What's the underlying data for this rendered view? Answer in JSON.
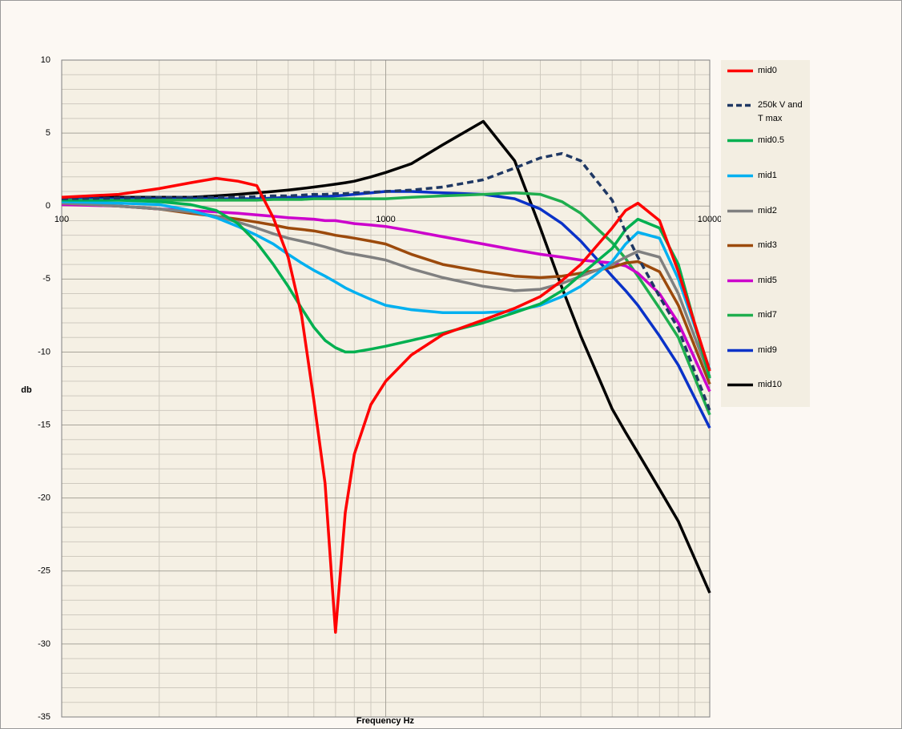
{
  "chart_data": {
    "type": "line",
    "xlabel": "Frequency Hz",
    "ylabel": "db",
    "x": [
      100,
      150,
      200,
      250,
      300,
      350,
      400,
      450,
      500,
      550,
      600,
      650,
      700,
      750,
      800,
      900,
      1000,
      1200,
      1500,
      2000,
      2500,
      3000,
      3500,
      4000,
      5000,
      5500,
      6000,
      7000,
      8000,
      10000
    ],
    "xlim": [
      100,
      10000
    ],
    "xticks": [
      100,
      1000,
      10000
    ],
    "log_x": true,
    "ylim": [
      -35,
      10
    ],
    "yticks": [
      -35,
      -30,
      -25,
      -20,
      -15,
      -10,
      -5,
      0,
      5,
      10
    ],
    "grid": true,
    "legend": "right",
    "series": [
      {
        "name": "mid0",
        "color": "#ff0000",
        "values": [
          0.6,
          0.8,
          1.2,
          1.6,
          1.9,
          1.7,
          1.4,
          -0.8,
          -3.5,
          -7.5,
          -13.3,
          -19,
          -29.2,
          -21,
          -17,
          -13.6,
          -12,
          -10.2,
          -8.8,
          -7.8,
          -7,
          -6.2,
          -5.1,
          -4,
          -1.5,
          -0.3,
          0.2,
          -1,
          -4.5,
          -11.3
        ]
      },
      {
        "name": "250k V and T max",
        "color": "#1f3864",
        "dash": true,
        "values": [
          0.5,
          0.55,
          0.6,
          0.6,
          0.6,
          0.6,
          0.65,
          0.7,
          0.7,
          0.75,
          0.8,
          0.8,
          0.85,
          0.85,
          0.9,
          0.95,
          1,
          1.1,
          1.3,
          1.8,
          2.6,
          3.3,
          3.6,
          3.1,
          0.4,
          -1.8,
          -3.5,
          -6.2,
          -8.4,
          -14
        ]
      },
      {
        "name": "mid0.5",
        "color": "#00b050",
        "values": [
          0.4,
          0.4,
          0.3,
          0.1,
          -0.3,
          -1.2,
          -2.5,
          -4,
          -5.5,
          -7,
          -8.3,
          -9.2,
          -9.7,
          -10,
          -10,
          -9.8,
          -9.6,
          -9.2,
          -8.7,
          -8,
          -7.3,
          -6.7,
          -5.8,
          -4.7,
          -2.9,
          -1.6,
          -0.9,
          -1.5,
          -4,
          -11.8
        ]
      },
      {
        "name": "mid1",
        "color": "#00b0f0",
        "values": [
          0.3,
          0.2,
          0.1,
          -0.3,
          -0.8,
          -1.4,
          -2,
          -2.6,
          -3.3,
          -3.9,
          -4.4,
          -4.8,
          -5.2,
          -5.6,
          -5.9,
          -6.4,
          -6.8,
          -7.1,
          -7.3,
          -7.3,
          -7.2,
          -6.8,
          -6.2,
          -5.5,
          -3.8,
          -2.6,
          -1.8,
          -2.2,
          -5,
          -11.2
        ]
      },
      {
        "name": "mid2",
        "color": "#808080",
        "values": [
          0.2,
          0,
          -0.2,
          -0.4,
          -0.7,
          -1.1,
          -1.5,
          -1.9,
          -2.2,
          -2.4,
          -2.6,
          -2.8,
          -3,
          -3.2,
          -3.3,
          -3.5,
          -3.7,
          -4.3,
          -4.9,
          -5.5,
          -5.8,
          -5.7,
          -5.3,
          -4.8,
          -4,
          -3.5,
          -3.1,
          -3.5,
          -6,
          -11.7
        ]
      },
      {
        "name": "mid3",
        "color": "#9c4a0c",
        "values": [
          0.2,
          0,
          -0.2,
          -0.5,
          -0.7,
          -0.9,
          -1.1,
          -1.3,
          -1.5,
          -1.6,
          -1.7,
          -1.85,
          -2,
          -2.1,
          -2.2,
          -2.4,
          -2.6,
          -3.3,
          -4,
          -4.5,
          -4.8,
          -4.9,
          -4.8,
          -4.6,
          -4.2,
          -3.9,
          -3.8,
          -4.5,
          -6.8,
          -12.2
        ]
      },
      {
        "name": "mid5",
        "color": "#cc00cc",
        "values": [
          0.1,
          0,
          -0.2,
          -0.3,
          -0.4,
          -0.5,
          -0.6,
          -0.7,
          -0.8,
          -0.85,
          -0.9,
          -1,
          -1,
          -1.1,
          -1.2,
          -1.3,
          -1.4,
          -1.7,
          -2.1,
          -2.6,
          -3,
          -3.3,
          -3.5,
          -3.7,
          -3.9,
          -4.1,
          -4.6,
          -6,
          -8,
          -12.7
        ]
      },
      {
        "name": "mid7",
        "color": "#1fae4e",
        "values": [
          0.4,
          0.4,
          0.4,
          0.4,
          0.4,
          0.4,
          0.4,
          0.45,
          0.45,
          0.45,
          0.5,
          0.5,
          0.5,
          0.5,
          0.5,
          0.5,
          0.5,
          0.6,
          0.7,
          0.8,
          0.9,
          0.8,
          0.3,
          -0.5,
          -2.5,
          -3.6,
          -4.8,
          -7,
          -9,
          -14.3
        ]
      },
      {
        "name": "mid9",
        "color": "#0a32c8",
        "values": [
          0.5,
          0.5,
          0.5,
          0.5,
          0.5,
          0.5,
          0.5,
          0.55,
          0.6,
          0.6,
          0.65,
          0.65,
          0.7,
          0.75,
          0.8,
          0.9,
          1,
          1,
          0.9,
          0.8,
          0.5,
          -0.2,
          -1.2,
          -2.4,
          -4.8,
          -5.8,
          -6.8,
          -8.9,
          -10.9,
          -15.2
        ]
      },
      {
        "name": "mid10",
        "color": "#000000",
        "values": [
          0.6,
          0.6,
          0.6,
          0.6,
          0.7,
          0.8,
          0.9,
          1,
          1.1,
          1.2,
          1.3,
          1.4,
          1.5,
          1.6,
          1.7,
          2,
          2.3,
          2.9,
          4.2,
          5.8,
          3.1,
          -1.5,
          -5.6,
          -8.9,
          -13.9,
          -15.5,
          -16.9,
          -19.4,
          -21.6,
          -26.5
        ]
      }
    ]
  }
}
